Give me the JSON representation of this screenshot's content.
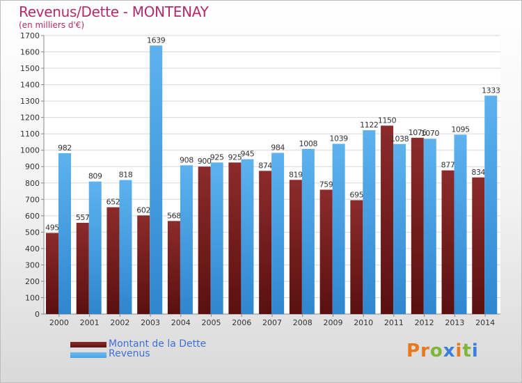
{
  "title": "Revenus/Dette - MONTENAY",
  "subtitle": "(en milliers d'€)",
  "logo": "Proxiti",
  "colors": {
    "dette": "#7a2020",
    "revenus": "#4aa3e6",
    "title": "#b42a6a",
    "legend_text": "#3d6fd9"
  },
  "legend": [
    {
      "label": "Montant de la Dette",
      "color": "#5b1515"
    },
    {
      "label": "Revenus",
      "color": "#4aa3e6"
    }
  ],
  "chart_data": {
    "type": "bar",
    "title": "Revenus/Dette - MONTENAY",
    "subtitle": "(en milliers d'€)",
    "categories": [
      "2000",
      "2001",
      "2002",
      "2003",
      "2004",
      "2005",
      "2006",
      "2007",
      "2008",
      "2009",
      "2010",
      "2011",
      "2012",
      "2013",
      "2014"
    ],
    "series": [
      {
        "name": "Montant de la Dette",
        "values": [
          495,
          557,
          652,
          602,
          568,
          900,
          925,
          874,
          819,
          759,
          695,
          1150,
          1076,
          877,
          834
        ]
      },
      {
        "name": "Revenus",
        "values": [
          982,
          809,
          818,
          1639,
          908,
          925,
          945,
          984,
          1008,
          1039,
          1122,
          1038,
          1070,
          1095,
          1333
        ]
      }
    ],
    "ylim": [
      0,
      1700
    ],
    "yticks": [
      0,
      100,
      200,
      300,
      400,
      500,
      600,
      700,
      800,
      900,
      1000,
      1100,
      1200,
      1300,
      1400,
      1500,
      1600,
      1700
    ],
    "grid": true,
    "legend_position": "bottom-left"
  }
}
